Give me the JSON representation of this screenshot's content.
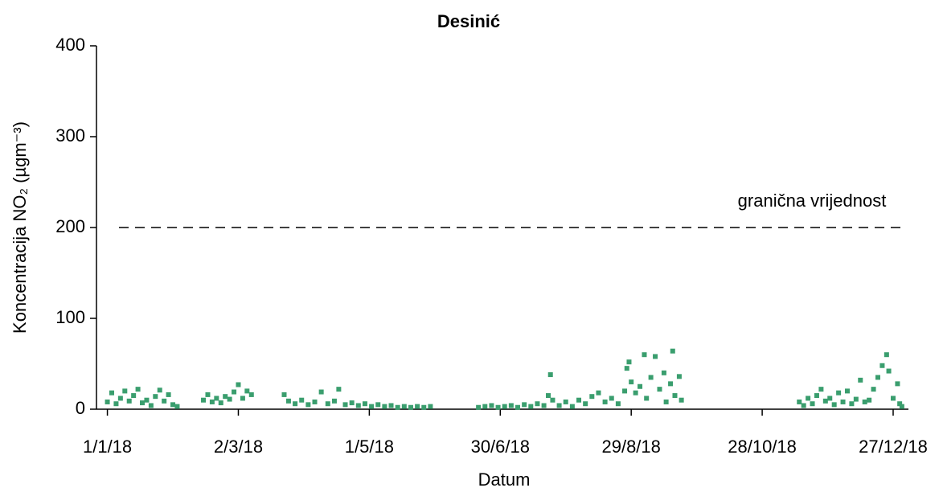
{
  "chart_data": {
    "type": "scatter",
    "title": "Desinić",
    "xlabel": "Datum",
    "ylabel": "Koncentracija NO₂ (µgm⁻³)",
    "xlim": [
      "27/12/17",
      "3/1/19"
    ],
    "ylim": [
      0,
      400
    ],
    "xticks": [
      "1/1/18",
      "2/3/18",
      "1/5/18",
      "30/6/18",
      "29/8/18",
      "28/10/18",
      "27/12/18"
    ],
    "yticks": [
      0,
      100,
      200,
      300,
      400
    ],
    "threshold": {
      "value": 200,
      "label": "granična vrijednost"
    },
    "series": [
      {
        "name": "NO₂",
        "color": "#3a9e6e",
        "x": [
          "1/1/18",
          "3/1/18",
          "5/1/18",
          "7/1/18",
          "9/1/18",
          "11/1/18",
          "13/1/18",
          "15/1/18",
          "17/1/18",
          "19/1/18",
          "21/1/18",
          "23/1/18",
          "25/1/18",
          "27/1/18",
          "29/1/18",
          "31/1/18",
          "2/2/18",
          "14/2/18",
          "16/2/18",
          "18/2/18",
          "20/2/18",
          "22/2/18",
          "24/2/18",
          "26/2/18",
          "28/2/18",
          "2/3/18",
          "4/3/18",
          "6/3/18",
          "8/3/18",
          "23/3/18",
          "25/3/18",
          "28/3/18",
          "31/3/18",
          "3/4/18",
          "6/4/18",
          "9/4/18",
          "12/4/18",
          "15/4/18",
          "17/4/18",
          "20/4/18",
          "23/4/18",
          "26/4/18",
          "29/4/18",
          "2/5/18",
          "5/5/18",
          "8/5/18",
          "11/5/18",
          "14/5/18",
          "17/5/18",
          "20/5/18",
          "23/5/18",
          "26/5/18",
          "29/5/18",
          "20/6/18",
          "23/6/18",
          "26/6/18",
          "29/6/18",
          "2/7/18",
          "5/7/18",
          "8/7/18",
          "11/7/18",
          "14/7/18",
          "17/7/18",
          "20/7/18",
          "22/7/18",
          "23/7/18",
          "24/7/18",
          "27/7/18",
          "30/7/18",
          "2/8/18",
          "5/8/18",
          "8/8/18",
          "11/8/18",
          "14/8/18",
          "17/8/18",
          "20/8/18",
          "23/8/18",
          "26/8/18",
          "27/8/18",
          "28/8/18",
          "29/8/18",
          "31/8/18",
          "2/9/18",
          "4/9/18",
          "5/9/18",
          "7/9/18",
          "9/9/18",
          "11/9/18",
          "13/9/18",
          "14/9/18",
          "16/9/18",
          "17/9/18",
          "18/9/18",
          "20/9/18",
          "21/9/18",
          "14/11/18",
          "16/11/18",
          "18/11/18",
          "20/11/18",
          "22/11/18",
          "24/11/18",
          "26/11/18",
          "28/11/18",
          "30/11/18",
          "2/12/18",
          "4/12/18",
          "6/12/18",
          "8/12/18",
          "10/12/18",
          "12/12/18",
          "14/12/18",
          "16/12/18",
          "18/12/18",
          "20/12/18",
          "22/12/18",
          "24/12/18",
          "25/12/18",
          "27/12/18",
          "29/12/18",
          "30/12/18",
          "31/12/18"
        ],
        "values": [
          8,
          18,
          6,
          12,
          20,
          9,
          15,
          22,
          7,
          10,
          4,
          14,
          21,
          9,
          16,
          5,
          3,
          10,
          16,
          8,
          12,
          7,
          14,
          11,
          19,
          27,
          12,
          20,
          16,
          16,
          9,
          6,
          10,
          5,
          8,
          19,
          6,
          9,
          22,
          5,
          7,
          4,
          6,
          3,
          5,
          3,
          4,
          2,
          3,
          2,
          3,
          2,
          3,
          2,
          3,
          4,
          2,
          3,
          4,
          2,
          5,
          3,
          6,
          4,
          15,
          38,
          10,
          4,
          8,
          3,
          10,
          6,
          14,
          18,
          8,
          12,
          6,
          20,
          45,
          52,
          30,
          18,
          25,
          60,
          12,
          35,
          58,
          22,
          40,
          8,
          28,
          64,
          15,
          36,
          10,
          8,
          4,
          12,
          6,
          15,
          22,
          9,
          12,
          5,
          18,
          8,
          20,
          6,
          11,
          32,
          8,
          10,
          22,
          35,
          48,
          60,
          42,
          12,
          28,
          6,
          3
        ]
      }
    ]
  }
}
